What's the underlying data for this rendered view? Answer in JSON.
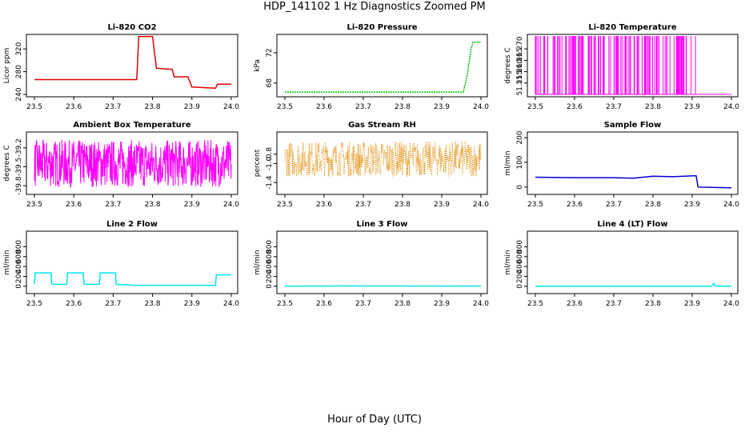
{
  "title": "HDP_141102  1 Hz Diagnostics Zoomed PM",
  "xlabel": "Hour of Day (UTC)",
  "colors": {
    "red": "#e00000",
    "green": "#00c000",
    "magenta": "#ff00ff",
    "orange": "#e08a00",
    "blue": "#0000d0",
    "cyan": "#00e5ee"
  },
  "chart_data": [
    {
      "type": "line",
      "title": "Li-820 CO2",
      "ylabel": "Licor ppm",
      "color": "red",
      "xlim": [
        23.5,
        24.0
      ],
      "ylim": [
        240,
        340
      ],
      "xticks": [
        "23.5",
        "23.6",
        "23.7",
        "23.8",
        "23.9",
        "24.0"
      ],
      "yticks": [
        "240",
        "280",
        "320"
      ],
      "series": [
        {
          "x": [
            23.5,
            23.76,
            23.765,
            23.8,
            23.81,
            23.85,
            23.855,
            23.89,
            23.9,
            23.96,
            23.965,
            24.0
          ],
          "y": [
            266,
            266,
            342,
            342,
            286,
            284,
            271,
            271,
            253,
            251,
            258,
            258
          ]
        }
      ]
    },
    {
      "type": "line",
      "title": "Li-820 Pressure",
      "ylabel": "kPa",
      "color": "green",
      "xlim": [
        23.5,
        24.0
      ],
      "ylim": [
        66.5,
        74
      ],
      "xticks": [
        "23.5",
        "23.6",
        "23.7",
        "23.8",
        "23.9",
        "24.0"
      ],
      "yticks": [
        "68",
        "72"
      ],
      "series": [
        {
          "x": [
            23.5,
            23.7,
            23.85,
            23.915,
            23.955,
            23.965,
            23.975,
            23.98,
            24.0
          ],
          "y": [
            66.8,
            66.8,
            66.8,
            66.8,
            66.8,
            69.0,
            72.5,
            73.4,
            73.4
          ]
        }
      ]
    },
    {
      "type": "line",
      "title": "Li-820 Temperature",
      "ylabel": "degrees C",
      "color": "magenta",
      "xlim": [
        23.5,
        24.0
      ],
      "ylim": [
        51.25,
        51.275
      ],
      "xticks": [
        "23.5",
        "23.6",
        "23.7",
        "23.8",
        "23.9",
        "24.0"
      ],
      "yticks": [
        "51.255",
        "51.260",
        "51.265",
        "51.270"
      ],
      "series": [
        {
          "x": [
            23.5,
            24.0
          ],
          "y": [
            51.25,
            51.25
          ]
        }
      ]
    },
    {
      "type": "line",
      "title": "Ambient Box Temperature",
      "ylabel": "degrees C",
      "color": "magenta",
      "xlim": [
        23.5,
        24.0
      ],
      "ylim": [
        -39.9,
        -39.0
      ],
      "xticks": [
        "23.5",
        "23.6",
        "23.7",
        "23.8",
        "23.9",
        "24.0"
      ],
      "yticks": [
        "-39.8",
        "-39.5",
        "-39.2"
      ],
      "series": [
        {
          "x": [
            23.5,
            24.0
          ],
          "y": [
            -39.45,
            -39.45
          ]
        }
      ]
    },
    {
      "type": "scatter",
      "title": "Gas Stream RH",
      "ylabel": "percent",
      "color": "orange",
      "xlim": [
        23.5,
        24.0
      ],
      "ylim": [
        -1.6,
        -0.4
      ],
      "xticks": [
        "23.5",
        "23.6",
        "23.7",
        "23.8",
        "23.9",
        "24.0"
      ],
      "yticks": [
        "-1.4",
        "-1.0",
        "-0.8"
      ],
      "series": [
        {
          "x": [
            23.5,
            24.0
          ],
          "y": [
            -0.9,
            -0.9
          ]
        }
      ]
    },
    {
      "type": "line",
      "title": "Sample Flow",
      "ylabel": "ml/min",
      "color": "blue",
      "xlim": [
        23.5,
        24.0
      ],
      "ylim": [
        -20,
        210
      ],
      "xticks": [
        "23.5",
        "23.6",
        "23.7",
        "23.8",
        "23.9",
        "24.0"
      ],
      "yticks": [
        "0",
        "100",
        "200"
      ],
      "series": [
        {
          "x": [
            23.5,
            23.6,
            23.7,
            23.75,
            23.8,
            23.85,
            23.91,
            23.915,
            24.0
          ],
          "y": [
            40,
            38,
            38,
            36,
            44,
            42,
            46,
            0,
            -3
          ]
        }
      ]
    },
    {
      "type": "line",
      "title": "Line 2 Flow",
      "ylabel": "ml/min",
      "color": "cyan",
      "xlim": [
        23.5,
        24.0
      ],
      "ylim": [
        -100,
        1050
      ],
      "xticks": [
        "23.5",
        "23.6",
        "23.7",
        "23.8",
        "23.9",
        "24.0"
      ],
      "yticks": [
        "0",
        "200",
        "400",
        "600",
        "800"
      ],
      "series": [
        {
          "x": [
            23.5,
            23.502,
            23.542,
            23.544,
            23.582,
            23.584,
            23.624,
            23.626,
            23.665,
            23.667,
            23.706,
            23.708,
            23.75,
            23.96,
            23.962,
            24.0
          ],
          "y": [
            40,
            270,
            270,
            40,
            40,
            270,
            270,
            40,
            40,
            270,
            270,
            40,
            20,
            20,
            230,
            230
          ]
        }
      ]
    },
    {
      "type": "line",
      "title": "Line 3 Flow",
      "ylabel": "ml/min",
      "color": "cyan",
      "xlim": [
        23.5,
        24.0
      ],
      "ylim": [
        -100,
        1050
      ],
      "xticks": [
        "23.5",
        "23.6",
        "23.7",
        "23.8",
        "23.9",
        "24.0"
      ],
      "yticks": [
        "0",
        "200",
        "400",
        "600",
        "800"
      ],
      "series": [
        {
          "x": [
            23.5,
            23.6,
            23.65,
            23.7,
            23.8,
            24.0
          ],
          "y": [
            2,
            4,
            8,
            6,
            5,
            3
          ]
        }
      ]
    },
    {
      "type": "line",
      "title": "Line 4 (LT) Flow",
      "ylabel": "ml/min",
      "color": "cyan",
      "xlim": [
        23.5,
        24.0
      ],
      "ylim": [
        -100,
        1050
      ],
      "xticks": [
        "23.5",
        "23.6",
        "23.7",
        "23.8",
        "23.9",
        "24.0"
      ],
      "yticks": [
        "0",
        "200",
        "400",
        "600",
        "800"
      ],
      "series": [
        {
          "x": [
            23.5,
            23.95,
            23.955,
            23.958,
            23.962,
            24.0
          ],
          "y": [
            2,
            2,
            60,
            10,
            2,
            2
          ]
        }
      ]
    }
  ]
}
